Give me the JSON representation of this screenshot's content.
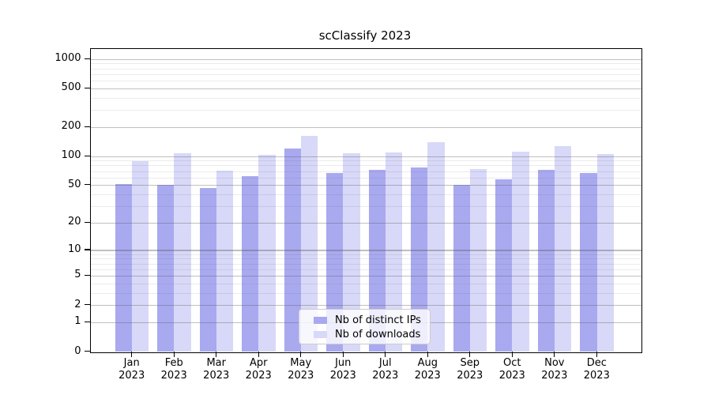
{
  "chart_data": {
    "type": "bar",
    "title": "scClassify 2023",
    "xlabel": "",
    "ylabel": "",
    "categories": [
      "Jan 2023",
      "Feb 2023",
      "Mar 2023",
      "Apr 2023",
      "May 2023",
      "Jun 2023",
      "Jul 2023",
      "Aug 2023",
      "Sep 2023",
      "Oct 2023",
      "Nov 2023",
      "Dec 2023"
    ],
    "series": [
      {
        "name": "Nb of distinct IPs",
        "color": "#a9a9f0",
        "values": [
          52,
          51,
          47,
          62,
          120,
          67,
          73,
          77,
          51,
          58,
          73,
          68
        ]
      },
      {
        "name": "Nb of downloads",
        "color": "#d8d8f8",
        "values": [
          90,
          108,
          72,
          104,
          165,
          108,
          110,
          140,
          74,
          113,
          129,
          106
        ]
      }
    ],
    "y_scale": "log10(value+1)",
    "ylim": [
      0,
      1280
    ],
    "y_major_ticks": [
      1000,
      500,
      200,
      100,
      50,
      20,
      10,
      5,
      2,
      1,
      0
    ],
    "y_minor_ticks": [
      900,
      800,
      700,
      600,
      400,
      300,
      90,
      80,
      70,
      60,
      40,
      30,
      9,
      8,
      7,
      6,
      4,
      3
    ],
    "grid": "horizontal, major and minor, drawn over bars",
    "legend_position": "lower center"
  }
}
